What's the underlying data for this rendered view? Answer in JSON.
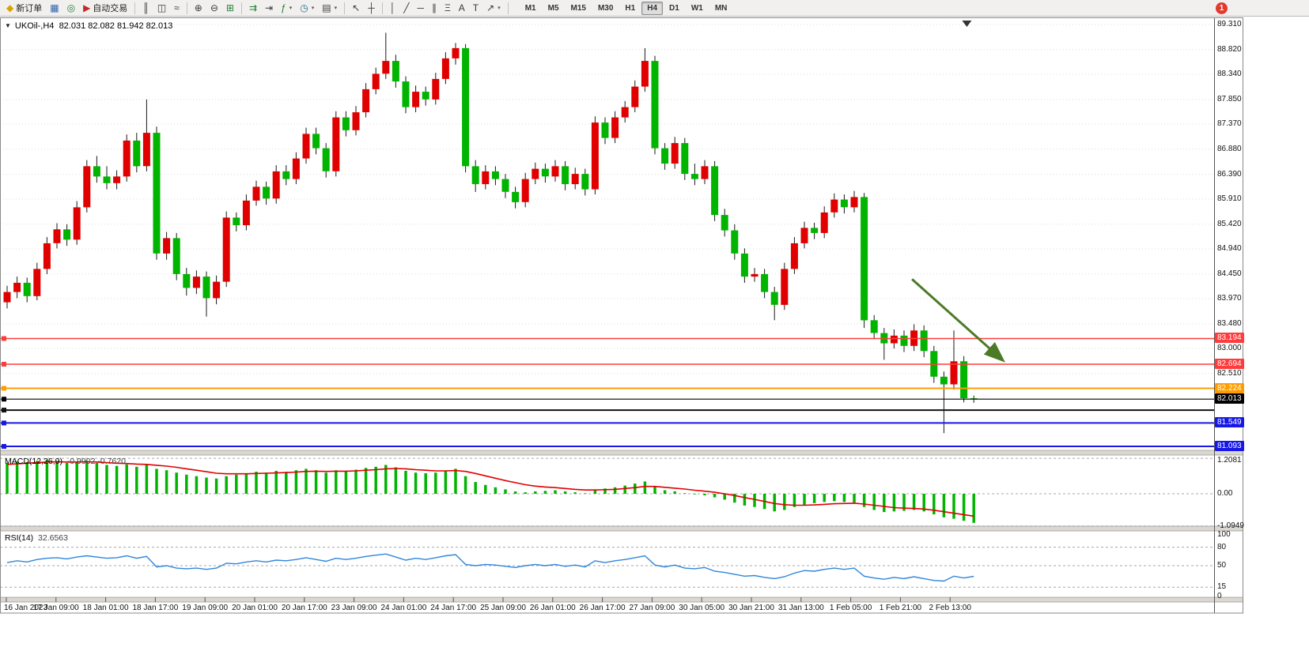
{
  "toolbar": {
    "new_order": "新订单",
    "auto_trading": "自动交易",
    "badge": "1",
    "timeframes": [
      "M1",
      "M5",
      "M15",
      "M30",
      "H1",
      "H4",
      "D1",
      "W1",
      "MN"
    ],
    "active_timeframe": "H4",
    "icons": {
      "new_order": "◆",
      "market_watch": "▦",
      "navigator": "◎",
      "auto_trading": "▶",
      "bar_chart": "║",
      "candle_chart": "◫",
      "line_chart": "≈",
      "zoom_in": "⊕",
      "zoom_out": "⊖",
      "tile_windows": "⊞",
      "auto_scroll": "⇉",
      "chart_shift": "⇥",
      "indicators": "ƒ",
      "periods": "◷",
      "templates": "▤",
      "cursor": "↖",
      "crosshair": "┼",
      "vline": "│",
      "trendline": "╱",
      "hline": "─",
      "channel": "∥",
      "fibonacci": "Ξ",
      "text": "A",
      "label": "T",
      "shapes": "↗",
      "dropdown": "▾"
    }
  },
  "chart": {
    "collapse": "▼",
    "symbol_period": "UKOil-,H4",
    "ohlc_string": "82.031 82.082 81.942 82.013"
  },
  "chart_data": {
    "type": "candlestick",
    "symbol": "UKOil-",
    "timeframe": "H4",
    "last_ohlc": {
      "open": 82.031,
      "high": 82.082,
      "low": 81.942,
      "close": 82.013
    },
    "colors": {
      "bull": "#E00000",
      "bear": "#00B400",
      "wick": "#1a1a1a",
      "macd_hist": "#00B400",
      "macd_signal": "#E00000",
      "rsi_line": "#2F86DC",
      "grid": "#DBDBDB",
      "arrow": "#4D7A26"
    },
    "price_axis_ticks": [
      "89.310",
      "88.820",
      "88.340",
      "87.850",
      "87.370",
      "86.880",
      "86.390",
      "85.910",
      "85.420",
      "84.940",
      "84.450",
      "83.970",
      "83.480",
      "83.000",
      "82.510"
    ],
    "hlines": [
      {
        "price": 83.194,
        "label": "83.194",
        "color": "#FF3B3B",
        "width": 1.4
      },
      {
        "price": 82.694,
        "label": "82.694",
        "color": "#FF3B3B",
        "width": 1.4
      },
      {
        "price": 82.224,
        "label": "82.224",
        "color": "#FF9D00",
        "width": 2
      },
      {
        "price": 82.013,
        "label": "82.013",
        "color": "#000000",
        "width": 1.2
      },
      {
        "price": 81.8,
        "label": null,
        "color": "#111111",
        "width": 2
      },
      {
        "price": 81.549,
        "label": "81.549",
        "color": "#1818E6",
        "width": 2
      },
      {
        "price": 81.093,
        "label": "81.093",
        "color": "#1818E6",
        "width": 2
      }
    ],
    "time_labels": [
      "16 Jan 2023",
      "17 Jan 09:00",
      "18 Jan 01:00",
      "18 Jan 17:00",
      "19 Jan 09:00",
      "20 Jan 01:00",
      "20 Jan 17:00",
      "23 Jan 09:00",
      "24 Jan 01:00",
      "24 Jan 17:00",
      "25 Jan 09:00",
      "26 Jan 01:00",
      "26 Jan 17:00",
      "27 Jan 09:00",
      "30 Jan 05:00",
      "30 Jan 21:00",
      "31 Jan 13:00",
      "1 Feb 05:00",
      "1 Feb 21:00",
      "2 Feb 13:00"
    ],
    "candles": [
      [
        83.9,
        84.22,
        83.78,
        84.1
      ],
      [
        84.1,
        84.4,
        83.98,
        84.28
      ],
      [
        84.28,
        84.38,
        83.9,
        84.02
      ],
      [
        84.02,
        84.67,
        83.94,
        84.55
      ],
      [
        84.55,
        85.17,
        84.45,
        85.05
      ],
      [
        85.05,
        85.44,
        84.95,
        85.32
      ],
      [
        85.32,
        85.42,
        85.0,
        85.12
      ],
      [
        85.12,
        85.87,
        85.02,
        85.75
      ],
      [
        85.75,
        86.67,
        85.65,
        86.55
      ],
      [
        86.55,
        86.75,
        86.23,
        86.35
      ],
      [
        86.35,
        86.55,
        86.1,
        86.22
      ],
      [
        86.22,
        86.47,
        86.1,
        86.35
      ],
      [
        86.35,
        87.17,
        86.25,
        87.05
      ],
      [
        87.05,
        87.2,
        86.43,
        86.55
      ],
      [
        86.55,
        87.85,
        86.45,
        87.2
      ],
      [
        87.2,
        87.32,
        84.73,
        84.85
      ],
      [
        84.85,
        85.27,
        84.73,
        85.15
      ],
      [
        85.15,
        85.25,
        84.33,
        84.45
      ],
      [
        84.45,
        84.57,
        84.03,
        84.18
      ],
      [
        84.18,
        84.52,
        84.06,
        84.4
      ],
      [
        84.4,
        84.5,
        83.62,
        83.98
      ],
      [
        83.98,
        84.42,
        83.86,
        84.3
      ],
      [
        84.3,
        85.67,
        84.2,
        85.55
      ],
      [
        85.55,
        85.65,
        85.28,
        85.4
      ],
      [
        85.4,
        86.0,
        85.3,
        85.88
      ],
      [
        85.88,
        86.27,
        85.78,
        86.15
      ],
      [
        86.15,
        86.25,
        85.8,
        85.92
      ],
      [
        85.92,
        86.57,
        85.82,
        86.45
      ],
      [
        86.45,
        86.57,
        86.18,
        86.3
      ],
      [
        86.3,
        86.82,
        86.2,
        86.7
      ],
      [
        86.7,
        87.3,
        86.6,
        87.18
      ],
      [
        87.18,
        87.3,
        86.78,
        86.9
      ],
      [
        86.9,
        87.0,
        86.33,
        86.45
      ],
      [
        86.45,
        87.62,
        86.35,
        87.5
      ],
      [
        87.5,
        87.62,
        87.13,
        87.25
      ],
      [
        87.25,
        87.72,
        87.15,
        87.6
      ],
      [
        87.6,
        88.17,
        87.5,
        88.05
      ],
      [
        88.05,
        88.47,
        87.95,
        88.35
      ],
      [
        88.35,
        89.15,
        88.25,
        88.6
      ],
      [
        88.6,
        88.72,
        88.08,
        88.2
      ],
      [
        88.2,
        88.3,
        87.58,
        87.7
      ],
      [
        87.7,
        88.12,
        87.6,
        88.0
      ],
      [
        88.0,
        88.1,
        87.73,
        87.85
      ],
      [
        87.85,
        88.37,
        87.75,
        88.25
      ],
      [
        88.25,
        88.77,
        88.15,
        88.65
      ],
      [
        88.65,
        88.95,
        88.53,
        88.85
      ],
      [
        88.85,
        88.93,
        86.43,
        86.55
      ],
      [
        86.55,
        86.67,
        86.05,
        86.2
      ],
      [
        86.2,
        86.57,
        86.1,
        86.45
      ],
      [
        86.45,
        86.55,
        86.18,
        86.3
      ],
      [
        86.3,
        86.4,
        85.93,
        86.05
      ],
      [
        86.05,
        86.15,
        85.73,
        85.85
      ],
      [
        85.85,
        86.42,
        85.75,
        86.3
      ],
      [
        86.3,
        86.62,
        86.2,
        86.5
      ],
      [
        86.5,
        86.6,
        86.23,
        86.35
      ],
      [
        86.35,
        86.67,
        86.25,
        86.55
      ],
      [
        86.55,
        86.65,
        86.08,
        86.2
      ],
      [
        86.2,
        86.52,
        86.1,
        86.4
      ],
      [
        86.4,
        86.5,
        85.98,
        86.1
      ],
      [
        86.1,
        87.52,
        86.0,
        87.4
      ],
      [
        87.4,
        87.5,
        86.98,
        87.1
      ],
      [
        87.1,
        87.62,
        87.0,
        87.5
      ],
      [
        87.5,
        87.82,
        87.4,
        87.7
      ],
      [
        87.7,
        88.22,
        87.6,
        88.1
      ],
      [
        88.1,
        88.85,
        88.0,
        88.6
      ],
      [
        88.6,
        88.7,
        86.78,
        86.9
      ],
      [
        86.9,
        87.0,
        86.48,
        86.6
      ],
      [
        86.6,
        87.12,
        86.5,
        87.0
      ],
      [
        87.0,
        87.1,
        86.28,
        86.4
      ],
      [
        86.4,
        86.6,
        86.18,
        86.3
      ],
      [
        86.3,
        86.67,
        86.2,
        86.55
      ],
      [
        86.55,
        86.65,
        85.48,
        85.6
      ],
      [
        85.6,
        85.72,
        85.18,
        85.3
      ],
      [
        85.3,
        85.42,
        84.73,
        84.85
      ],
      [
        84.85,
        84.95,
        84.28,
        84.4
      ],
      [
        84.4,
        84.57,
        84.3,
        84.45
      ],
      [
        84.45,
        84.55,
        83.98,
        84.1
      ],
      [
        84.1,
        84.2,
        83.55,
        83.85
      ],
      [
        83.85,
        84.67,
        83.75,
        84.55
      ],
      [
        84.55,
        85.17,
        84.45,
        85.05
      ],
      [
        85.05,
        85.47,
        84.95,
        85.35
      ],
      [
        85.35,
        85.45,
        85.13,
        85.25
      ],
      [
        85.25,
        85.77,
        85.15,
        85.65
      ],
      [
        85.65,
        86.02,
        85.55,
        85.9
      ],
      [
        85.9,
        86.0,
        85.63,
        85.75
      ],
      [
        85.75,
        86.07,
        85.65,
        85.95
      ],
      [
        85.95,
        86.03,
        83.4,
        83.55
      ],
      [
        83.55,
        83.65,
        83.18,
        83.3
      ],
      [
        83.3,
        83.4,
        82.78,
        83.1
      ],
      [
        83.1,
        83.37,
        83.0,
        83.25
      ],
      [
        83.25,
        83.35,
        82.93,
        83.05
      ],
      [
        83.05,
        83.47,
        82.95,
        83.35
      ],
      [
        83.35,
        83.45,
        82.83,
        82.95
      ],
      [
        82.95,
        83.05,
        82.33,
        82.45
      ],
      [
        82.45,
        82.55,
        81.35,
        82.3
      ],
      [
        82.3,
        83.35,
        82.2,
        82.75
      ],
      [
        82.75,
        82.85,
        81.95,
        82.03
      ],
      [
        82.031,
        82.082,
        81.942,
        82.013
      ]
    ],
    "macd": {
      "name": "MACD(12,26,9)",
      "values_text": "-0.9902 -0.7620",
      "value": -0.9902,
      "signal_value": -0.762,
      "axis_ticks": [
        "1.2081",
        "0.00",
        "-1.0949"
      ],
      "hist": [
        1.05,
        1.1,
        1.08,
        1.12,
        1.15,
        1.1,
        1.05,
        1.08,
        1.12,
        1.05,
        0.98,
        0.95,
        1.0,
        0.92,
        0.98,
        0.85,
        0.8,
        0.72,
        0.65,
        0.6,
        0.55,
        0.52,
        0.6,
        0.65,
        0.7,
        0.75,
        0.72,
        0.78,
        0.75,
        0.8,
        0.85,
        0.8,
        0.72,
        0.8,
        0.78,
        0.82,
        0.88,
        0.92,
        0.98,
        0.9,
        0.78,
        0.72,
        0.7,
        0.72,
        0.78,
        0.85,
        0.6,
        0.4,
        0.3,
        0.22,
        0.15,
        0.08,
        0.05,
        0.08,
        0.1,
        0.12,
        0.08,
        0.05,
        0.02,
        0.12,
        0.18,
        0.22,
        0.28,
        0.35,
        0.42,
        0.25,
        0.12,
        0.08,
        0.02,
        -0.02,
        -0.05,
        -0.12,
        -0.2,
        -0.3,
        -0.4,
        -0.45,
        -0.52,
        -0.6,
        -0.55,
        -0.45,
        -0.38,
        -0.32,
        -0.28,
        -0.25,
        -0.28,
        -0.3,
        -0.45,
        -0.55,
        -0.62,
        -0.6,
        -0.58,
        -0.55,
        -0.6,
        -0.7,
        -0.8,
        -0.85,
        -0.92,
        -0.99
      ],
      "signal": [
        1.0,
        1.02,
        1.04,
        1.06,
        1.08,
        1.09,
        1.08,
        1.08,
        1.09,
        1.08,
        1.06,
        1.04,
        1.03,
        1.01,
        1.0,
        0.97,
        0.94,
        0.9,
        0.85,
        0.8,
        0.75,
        0.7,
        0.68,
        0.68,
        0.68,
        0.69,
        0.7,
        0.71,
        0.72,
        0.74,
        0.76,
        0.77,
        0.76,
        0.77,
        0.77,
        0.78,
        0.8,
        0.82,
        0.85,
        0.86,
        0.85,
        0.82,
        0.8,
        0.78,
        0.78,
        0.79,
        0.76,
        0.69,
        0.61,
        0.53,
        0.45,
        0.38,
        0.31,
        0.26,
        0.23,
        0.21,
        0.18,
        0.15,
        0.13,
        0.13,
        0.14,
        0.15,
        0.18,
        0.21,
        0.25,
        0.25,
        0.22,
        0.19,
        0.16,
        0.12,
        0.09,
        0.05,
        0.0,
        -0.06,
        -0.13,
        -0.19,
        -0.26,
        -0.33,
        -0.37,
        -0.39,
        -0.39,
        -0.38,
        -0.36,
        -0.34,
        -0.33,
        -0.32,
        -0.35,
        -0.39,
        -0.43,
        -0.47,
        -0.49,
        -0.5,
        -0.52,
        -0.56,
        -0.61,
        -0.66,
        -0.71,
        -0.76
      ]
    },
    "rsi": {
      "name": "RSI(14)",
      "value_text": "32.6563",
      "value": 32.6563,
      "axis_ticks": [
        "100",
        "80",
        "50",
        "15",
        "0"
      ],
      "levels": [
        80,
        50,
        15
      ],
      "values": [
        55,
        58,
        56,
        60,
        62,
        63,
        61,
        64,
        66,
        64,
        62,
        63,
        66,
        62,
        65,
        48,
        50,
        46,
        45,
        46,
        44,
        46,
        54,
        53,
        56,
        58,
        56,
        59,
        58,
        60,
        63,
        60,
        57,
        62,
        60,
        62,
        65,
        67,
        69,
        64,
        59,
        62,
        60,
        63,
        66,
        68,
        52,
        50,
        52,
        51,
        49,
        47,
        50,
        52,
        50,
        52,
        49,
        51,
        48,
        58,
        55,
        58,
        60,
        63,
        66,
        51,
        48,
        51,
        46,
        45,
        47,
        41,
        39,
        36,
        33,
        34,
        31,
        29,
        32,
        38,
        42,
        41,
        44,
        46,
        44,
        46,
        33,
        30,
        28,
        31,
        29,
        32,
        29,
        26,
        25,
        33,
        30,
        32.66
      ]
    },
    "annotations": [
      {
        "type": "arrow",
        "from": {
          "index": 90.8,
          "price": 84.35
        },
        "to": {
          "index": 99.8,
          "price": 82.79
        },
        "color": "#4D7A26"
      }
    ],
    "shift_marker_index": 96.3
  }
}
